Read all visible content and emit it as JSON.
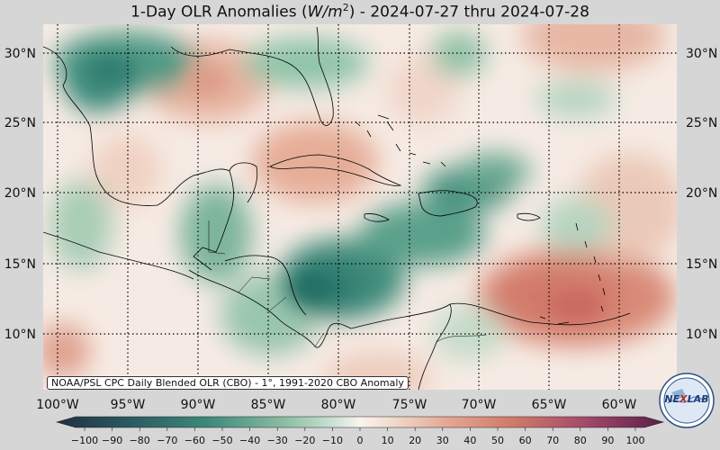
{
  "title": "1-Day OLR Anomalies (W/m²) - 2024-07-27 thru 2024-07-28",
  "title_parts": {
    "prefix": "1-Day OLR Anomalies (",
    "unit_italic": "W/m",
    "unit_sup": "2",
    "suffix": ") - 2024-07-27 thru 2024-07-28"
  },
  "map": {
    "lat_labels": [
      "30°N",
      "25°N",
      "20°N",
      "15°N",
      "10°N"
    ],
    "lon_labels": [
      "100°W",
      "95°W",
      "90°W",
      "85°W",
      "80°W",
      "75°W",
      "70°W",
      "65°W",
      "60°W"
    ],
    "lat_values": [
      30,
      25,
      20,
      15,
      10
    ],
    "lon_values": [
      -100,
      -95,
      -90,
      -85,
      -80,
      -75,
      -70,
      -65,
      -60
    ],
    "extent": {
      "lon_min": -101,
      "lon_max": -57,
      "lat_min": 6,
      "lat_max": 32
    },
    "gridlines": "dotted"
  },
  "colorbar": {
    "ticks": [
      "−100",
      "−90",
      "−80",
      "−70",
      "−60",
      "−50",
      "−40",
      "−30",
      "−20",
      "−10",
      "0",
      "10",
      "20",
      "30",
      "40",
      "50",
      "60",
      "70",
      "80",
      "90",
      "100"
    ],
    "range": [
      -100,
      100
    ],
    "colors": {
      "min": "#1f3040",
      "neg_mid": "#3d8a7a",
      "neg_light": "#cfe4d6",
      "zero": "#fbf3ef",
      "pos_light": "#ebc3b0",
      "pos_mid": "#d27a6a",
      "max": "#5a1f4a"
    }
  },
  "credit": "NOAA/PSL CPC Daily Blended OLR (CBO) - 1°, 1991-2020 CBO Anomaly",
  "logo": {
    "text": "NEXLAB",
    "text_a": "NE",
    "text_b": "LAB"
  }
}
